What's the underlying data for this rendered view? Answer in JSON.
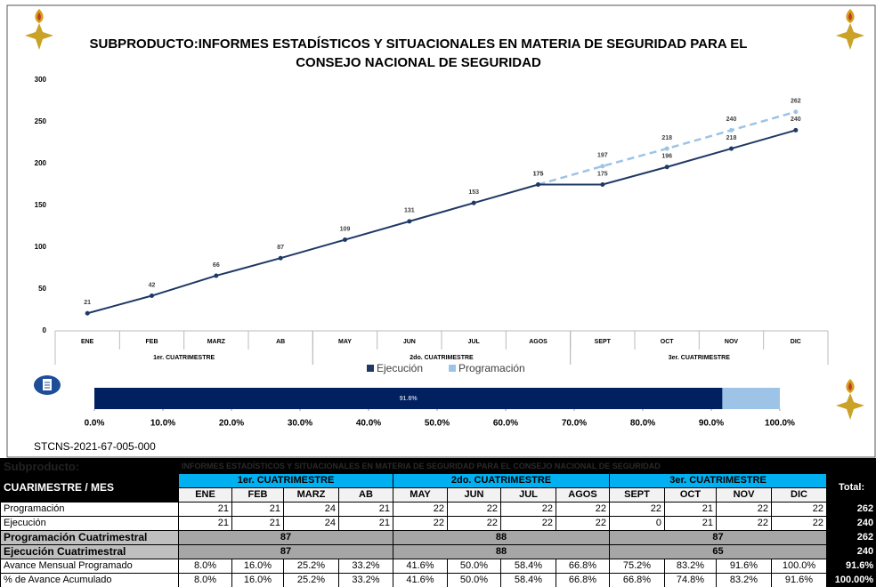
{
  "header": {
    "title": [
      "SUBPRODUCTO:INFORMES ESTADÍSTICOS Y SITUACIONALES EN MATERIA DE SEGURIDAD PARA EL",
      "CONSEJO NACIONAL DE SEGURIDAD"
    ]
  },
  "chart_data": [
    {
      "type": "line",
      "categories": [
        "ENE",
        "FEB",
        "MARZ",
        "AB",
        "MAY",
        "JUN",
        "JUL",
        "AGOS",
        "SEPT",
        "OCT",
        "NOV",
        "DIC"
      ],
      "groups": [
        "1er. CUATRIMESTRE",
        "2do. CUATRIMESTRE",
        "3er. CUATRIMESTRE"
      ],
      "series": [
        {
          "name": "Ejecución",
          "color": "#1f3864",
          "values": [
            21,
            42,
            66,
            87,
            109,
            131,
            153,
            175,
            175,
            196,
            218,
            240
          ]
        },
        {
          "name": "Programación",
          "color": "#9dc3e6",
          "dashed": true,
          "values": [
            null,
            null,
            null,
            null,
            null,
            null,
            null,
            175,
            197,
            218,
            240,
            262
          ]
        }
      ],
      "ylim": [
        0,
        300
      ],
      "yticks": [
        0,
        50,
        100,
        150,
        200,
        250,
        300
      ],
      "grid": false,
      "legend": "bottom"
    },
    {
      "type": "bar",
      "orientation": "horizontal",
      "values": [
        91.6
      ],
      "value_labels": [
        "91.6%"
      ],
      "color": "#002060",
      "background_color": "#9dc3e6",
      "xlim": [
        0,
        100
      ],
      "xticks": [
        {
          "value": 0,
          "label": "0.0%"
        },
        {
          "value": 10,
          "label": "10.0%"
        },
        {
          "value": 20,
          "label": "20.0%"
        },
        {
          "value": 30,
          "label": "30.0%"
        },
        {
          "value": 40,
          "label": "40.0%"
        },
        {
          "value": 50,
          "label": "50.0%"
        },
        {
          "value": 60,
          "label": "60.0%"
        },
        {
          "value": 70,
          "label": "70.0%"
        },
        {
          "value": 80,
          "label": "80.0%"
        },
        {
          "value": 90,
          "label": "90.0%"
        },
        {
          "value": 100,
          "label": "100.0%"
        }
      ]
    }
  ],
  "code": "STCNS-2021-67-005-000",
  "table": {
    "subproducto_label": "Subproducto:",
    "subproducto": "INFORMES ESTADÍSTICOS Y SITUACIONALES EN MATERIA DE SEGURIDAD PARA EL CONSEJO NACIONAL DE SEGURIDAD",
    "corner": "CUARIMESTRE / MES",
    "groups": [
      "1er. CUATRIMESTRE",
      "2do. CUATRIMESTRE",
      "3er. CUATRIMESTRE"
    ],
    "months": [
      "ENE",
      "FEB",
      "MARZ",
      "AB",
      "MAY",
      "JUN",
      "JUL",
      "AGOS",
      "SEPT",
      "OCT",
      "NOV",
      "DIC"
    ],
    "total_header": "Total:",
    "rows": [
      {
        "label": "Programación",
        "cells": [
          "21",
          "21",
          "24",
          "21",
          "22",
          "22",
          "22",
          "22",
          "22",
          "21",
          "22",
          "22"
        ],
        "total": "262"
      },
      {
        "label": "Ejecución",
        "cells": [
          "21",
          "21",
          "24",
          "21",
          "22",
          "22",
          "22",
          "22",
          "0",
          "21",
          "22",
          "22"
        ],
        "total": "240"
      },
      {
        "label": "Programación Cuatrimestral",
        "cells": [
          "87",
          "88",
          "87"
        ],
        "total": "262"
      },
      {
        "label": "Ejecución Cuatrimestral",
        "cells": [
          "87",
          "88",
          "65"
        ],
        "total": "240"
      },
      {
        "label": "Avance Mensual Programado",
        "cells": [
          "8.0%",
          "16.0%",
          "25.2%",
          "33.2%",
          "41.6%",
          "50.0%",
          "58.4%",
          "66.8%",
          "75.2%",
          "83.2%",
          "91.6%",
          "100.0%"
        ],
        "total": "91.6%"
      },
      {
        "label": "% de Avance Acumulado",
        "cells": [
          "8.0%",
          "16.0%",
          "25.2%",
          "33.2%",
          "41.6%",
          "50.0%",
          "58.4%",
          "66.8%",
          "66.8%",
          "74.8%",
          "83.2%",
          "91.6%"
        ],
        "total": "100.00%"
      }
    ]
  }
}
